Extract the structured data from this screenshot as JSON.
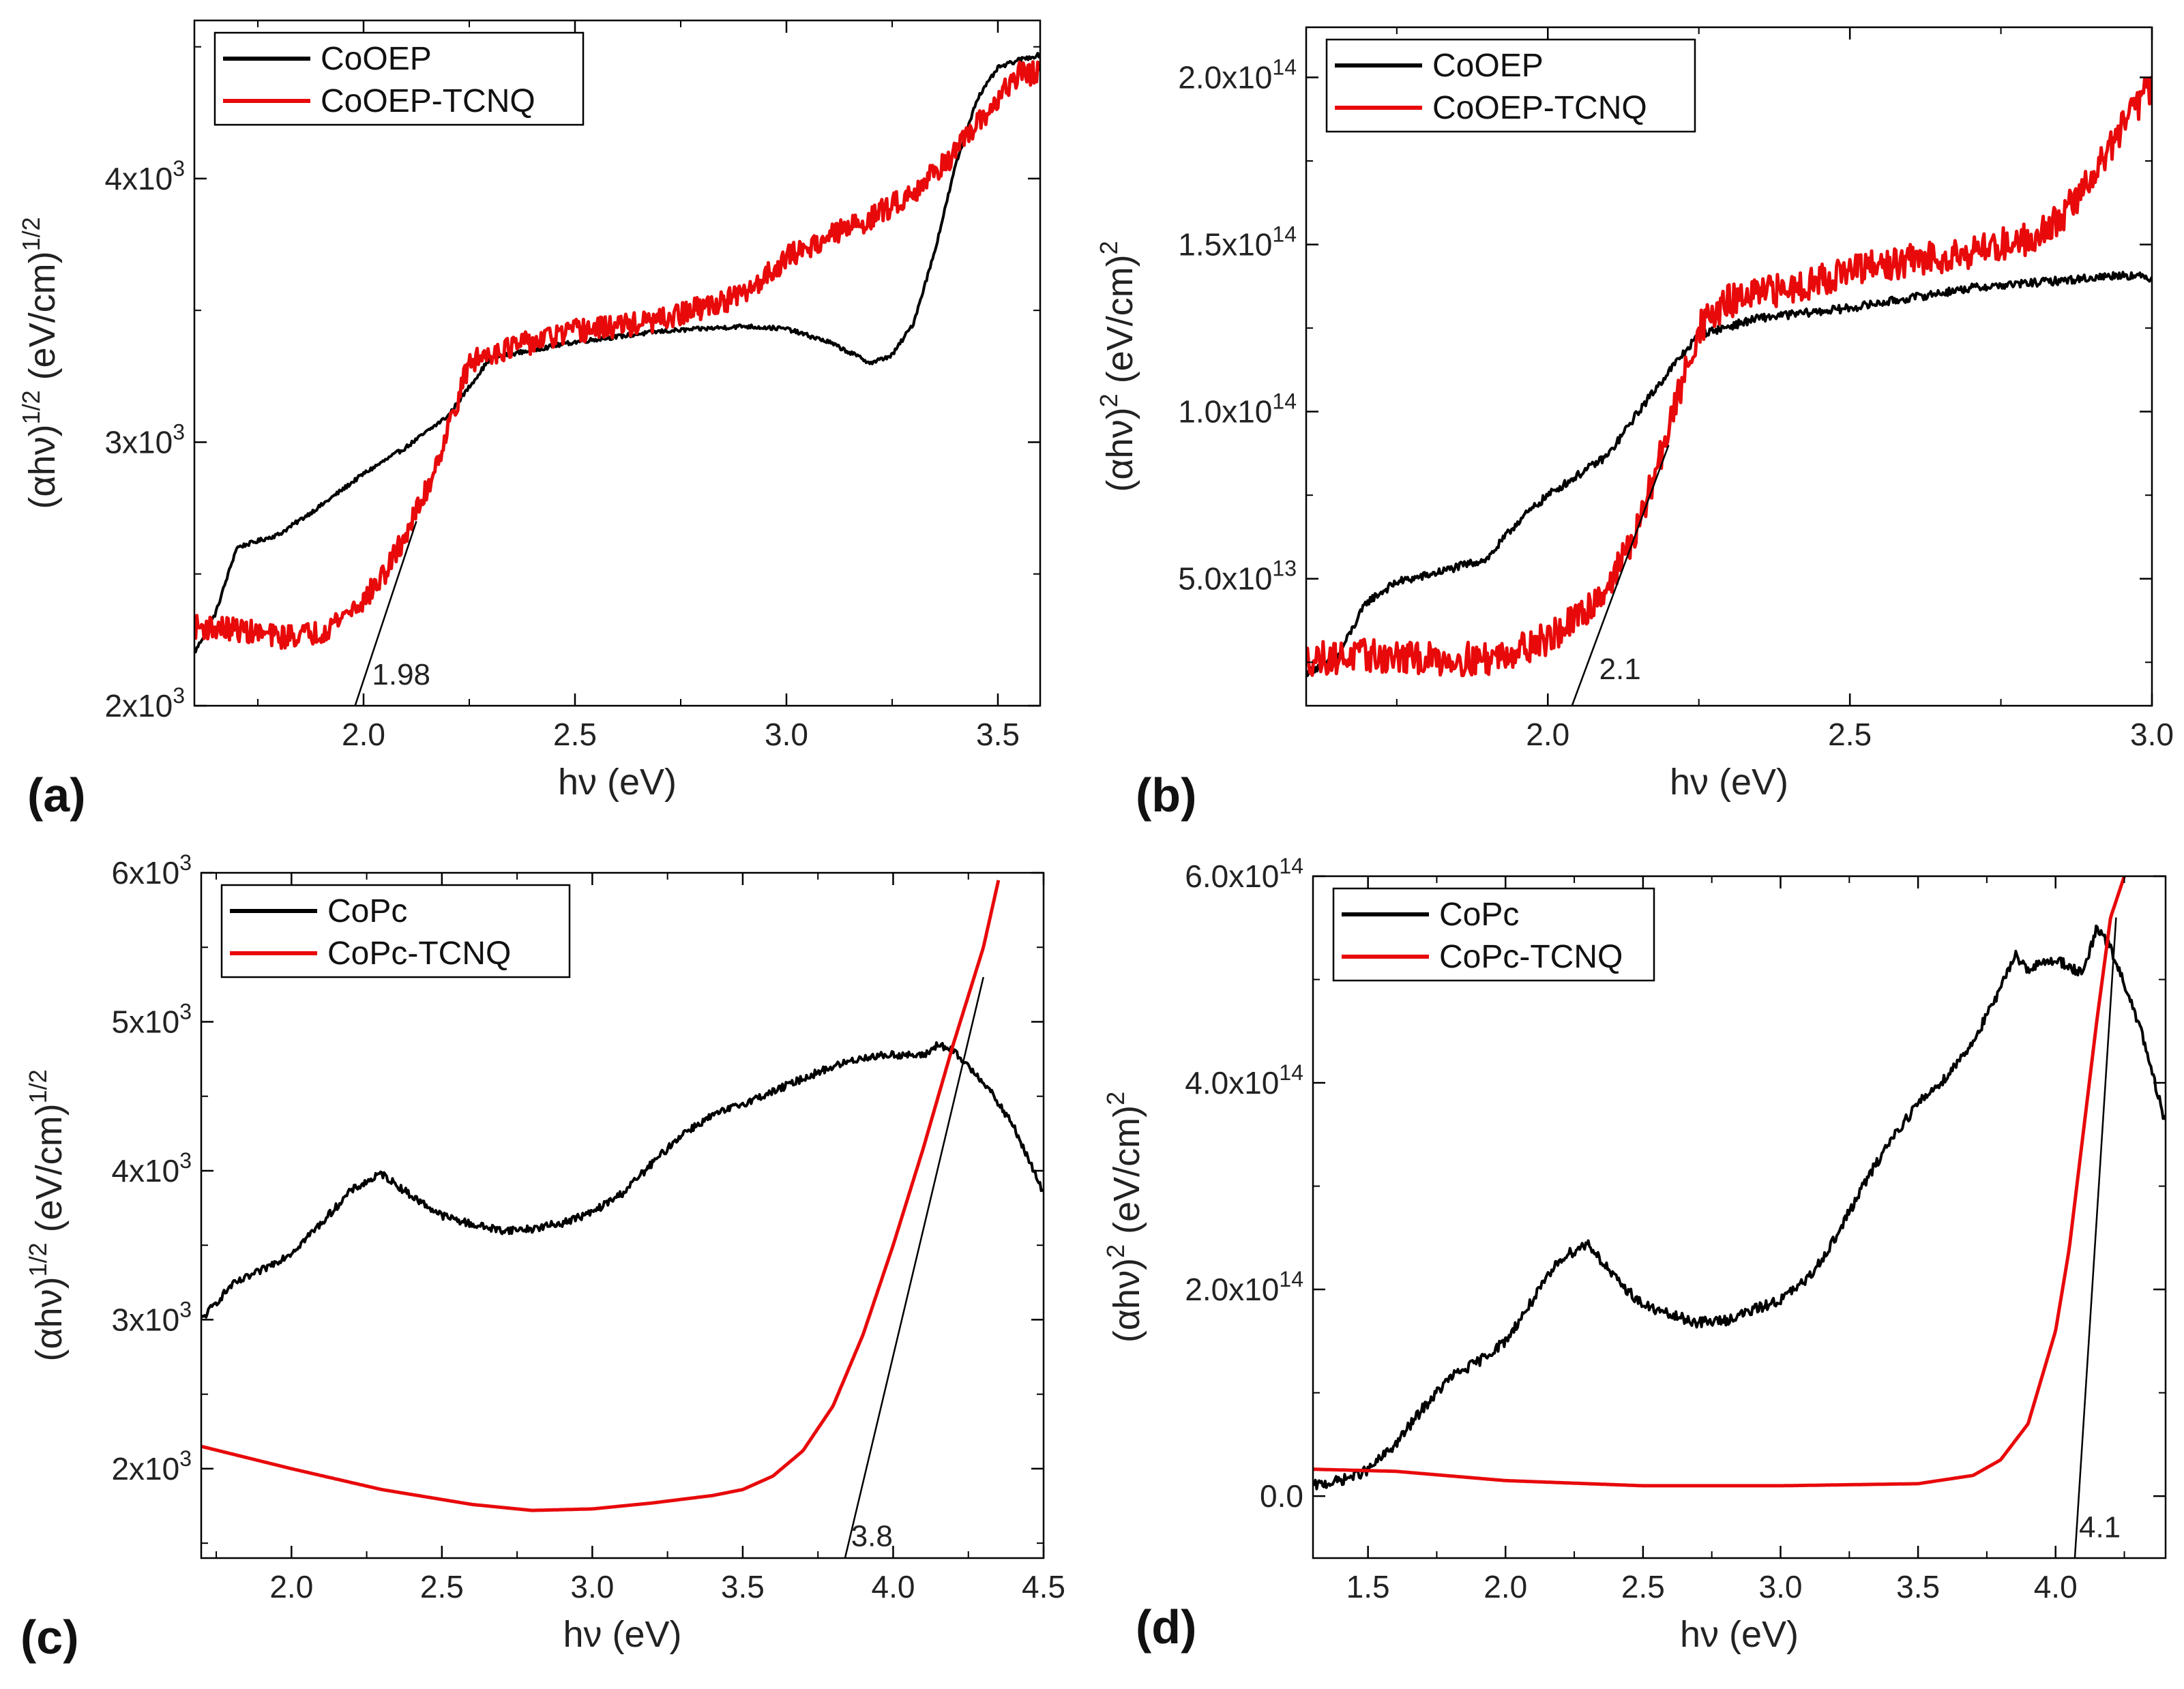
{
  "chart_data": [
    {
      "id": "a",
      "panel_label": "(a)",
      "type": "line",
      "xlabel": "hν (eV)",
      "ylabel": "(αhν)^1/2 (eV/cm)^1/2",
      "ylabel_main": "(αhν)",
      "ylabel_sup1": "1/2",
      "ylabel_mid": " (eV/cm)",
      "ylabel_sup2": "1/2",
      "xlim": [
        1.6,
        3.6
      ],
      "ylim": [
        2000,
        4600
      ],
      "xticks": [
        {
          "v": 2.0,
          "t": "2.0"
        },
        {
          "v": 2.5,
          "t": "2.5"
        },
        {
          "v": 3.0,
          "t": "3.0"
        },
        {
          "v": 3.5,
          "t": "3.5"
        }
      ],
      "yticks": [
        {
          "v": 2000,
          "b": "2x10",
          "e": "3"
        },
        {
          "v": 3000,
          "b": "3x10",
          "e": "3"
        },
        {
          "v": 4000,
          "b": "4x10",
          "e": "3"
        }
      ],
      "xminor": [
        1.75,
        2.25,
        2.75,
        3.25
      ],
      "yminor": [
        2500,
        3500,
        4500
      ],
      "legend": [
        "CoOEP",
        "CoOEP-TCNQ"
      ],
      "series": [
        {
          "name": "CoOEP",
          "color": "#000000",
          "noise": 8,
          "x": [
            1.6,
            1.65,
            1.7,
            1.8,
            1.9,
            2.0,
            2.1,
            2.2,
            2.3,
            2.5,
            2.7,
            2.9,
            3.0,
            3.1,
            3.2,
            3.25,
            3.3,
            3.35,
            3.4,
            3.45,
            3.5,
            3.55,
            3.6
          ],
          "y": [
            2200,
            2350,
            2600,
            2650,
            2760,
            2880,
            2980,
            3100,
            3320,
            3380,
            3420,
            3440,
            3430,
            3380,
            3300,
            3330,
            3450,
            3720,
            4050,
            4300,
            4420,
            4450,
            4470
          ]
        },
        {
          "name": "CoOEP-TCNQ",
          "color": "#e8090a",
          "noise": 45,
          "x": [
            1.6,
            1.7,
            1.8,
            1.9,
            2.0,
            2.05,
            2.1,
            2.15,
            2.2,
            2.25,
            2.3,
            2.5,
            2.7,
            2.9,
            3.0,
            3.1,
            3.2,
            3.3,
            3.4,
            3.5,
            3.55,
            3.6
          ],
          "y": [
            2300,
            2290,
            2260,
            2280,
            2400,
            2500,
            2650,
            2820,
            3050,
            3300,
            3340,
            3420,
            3460,
            3560,
            3700,
            3780,
            3850,
            3950,
            4100,
            4300,
            4400,
            4400
          ]
        }
      ],
      "fit_line": {
        "x": [
          1.98,
          2.125
        ],
        "y": [
          2000,
          2700
        ]
      },
      "annotation": {
        "text": "1.98",
        "x": 2.02,
        "y": 2080
      }
    },
    {
      "id": "b",
      "panel_label": "(b)",
      "type": "line",
      "xlabel": "hν (eV)",
      "ylabel": "(αhν)^2 (eV/cm)^2",
      "ylabel_main": "(αhν)",
      "ylabel_sup1": "2",
      "ylabel_mid": " (eV/cm)",
      "ylabel_sup2": "2",
      "xlim": [
        1.6,
        3.0
      ],
      "ylim": [
        12000000000000.0,
        215000000000000.0
      ],
      "xticks": [
        {
          "v": 2.0,
          "t": "2.0"
        },
        {
          "v": 2.5,
          "t": "2.5"
        },
        {
          "v": 3.0,
          "t": "3.0"
        }
      ],
      "yticks": [
        {
          "v": 50000000000000.0,
          "b": "5.0x10",
          "e": "13"
        },
        {
          "v": 100000000000000.0,
          "b": "1.0x10",
          "e": "14"
        },
        {
          "v": 150000000000000.0,
          "b": "1.5x10",
          "e": "14"
        },
        {
          "v": 200000000000000.0,
          "b": "2.0x10",
          "e": "14"
        }
      ],
      "xminor": [
        1.75,
        2.25,
        2.75
      ],
      "yminor": [
        25000000000000.0,
        75000000000000.0,
        125000000000000.0,
        175000000000000.0
      ],
      "legend": [
        "CoOEP",
        "CoOEP-TCNQ"
      ],
      "series": [
        {
          "name": "CoOEP",
          "color": "#000000",
          "noise": 1200000000000.0,
          "x": [
            1.6,
            1.65,
            1.7,
            1.75,
            1.8,
            1.9,
            1.95,
            2.0,
            2.1,
            2.15,
            2.2,
            2.25,
            2.35,
            2.5,
            2.7,
            2.9,
            2.95,
            3.0
          ],
          "y": [
            22000000000000.0,
            26000000000000.0,
            43000000000000.0,
            49000000000000.0,
            51000000000000.0,
            56000000000000.0,
            67000000000000.0,
            75000000000000.0,
            87000000000000.0,
            100000000000000.0,
            112000000000000.0,
            123000000000000.0,
            128000000000000.0,
            131000000000000.0,
            137000000000000.0,
            140000000000000.0,
            141000000000000.0,
            140000000000000.0
          ]
        },
        {
          "name": "CoOEP-TCNQ",
          "color": "#e8090a",
          "noise": 5000000000000.0,
          "x": [
            1.6,
            1.7,
            1.8,
            1.9,
            2.0,
            2.05,
            2.1,
            2.15,
            2.2,
            2.25,
            2.3,
            2.4,
            2.5,
            2.6,
            2.7,
            2.8,
            2.85,
            2.9,
            2.95,
            3.0
          ],
          "y": [
            26000000000000.0,
            27000000000000.0,
            26000000000000.0,
            26000000000000.0,
            32000000000000.0,
            38000000000000.0,
            48000000000000.0,
            65000000000000.0,
            95000000000000.0,
            125000000000000.0,
            133000000000000.0,
            137000000000000.0,
            142000000000000.0,
            145000000000000.0,
            148000000000000.0,
            152000000000000.0,
            158000000000000.0,
            170000000000000.0,
            185000000000000.0,
            198000000000000.0
          ]
        }
      ],
      "fit_line": {
        "x": [
          2.04,
          2.2
        ],
        "y": [
          12000000000000.0,
          90000000000000.0
        ]
      },
      "annotation": {
        "text": "2.1",
        "x": 2.085,
        "y": 20000000000000.0
      }
    },
    {
      "id": "c",
      "panel_label": "(c)",
      "type": "line",
      "xlabel": "hν (eV)",
      "ylabel": "(αhν)^1/2 (eV/cm)^1/2",
      "ylabel_main": "(αhν)",
      "ylabel_sup1": "1/2",
      "ylabel_mid": " (eV/cm)",
      "ylabel_sup2": "1/2",
      "xlim": [
        1.7,
        4.5
      ],
      "ylim": [
        1400,
        6000
      ],
      "xticks": [
        {
          "v": 2.0,
          "t": "2.0"
        },
        {
          "v": 2.5,
          "t": "2.5"
        },
        {
          "v": 3.0,
          "t": "3.0"
        },
        {
          "v": 3.5,
          "t": "3.5"
        },
        {
          "v": 4.0,
          "t": "4.0"
        },
        {
          "v": 4.5,
          "t": "4.5"
        }
      ],
      "yticks": [
        {
          "v": 2000,
          "b": "2x10",
          "e": "3"
        },
        {
          "v": 3000,
          "b": "3x10",
          "e": "3"
        },
        {
          "v": 4000,
          "b": "4x10",
          "e": "3"
        },
        {
          "v": 5000,
          "b": "5x10",
          "e": "3"
        },
        {
          "v": 6000,
          "b": "6x10",
          "e": "3"
        }
      ],
      "xminor": [
        1.75,
        2.25,
        2.75,
        3.25,
        3.75,
        4.25
      ],
      "yminor": [
        1500,
        2500,
        3500,
        4500,
        5500
      ],
      "legend": [
        "CoPc",
        "CoPc-TCNQ"
      ],
      "series": [
        {
          "name": "CoPc",
          "color": "#000000",
          "noise": 25,
          "x": [
            1.7,
            1.8,
            1.9,
            2.0,
            2.1,
            2.2,
            2.3,
            2.4,
            2.5,
            2.6,
            2.7,
            2.8,
            2.9,
            3.0,
            3.1,
            3.2,
            3.3,
            3.4,
            3.5,
            3.6,
            3.7,
            3.8,
            3.9,
            4.0,
            4.1,
            4.15,
            4.2,
            4.3,
            4.4,
            4.5
          ],
          "y": [
            3000,
            3230,
            3330,
            3450,
            3650,
            3870,
            3980,
            3830,
            3700,
            3640,
            3600,
            3610,
            3650,
            3720,
            3850,
            4050,
            4250,
            4370,
            4450,
            4530,
            4620,
            4700,
            4760,
            4780,
            4770,
            4850,
            4800,
            4600,
            4300,
            3850
          ]
        },
        {
          "name": "CoPc-TCNQ",
          "color": "#e8090a",
          "noise": 0,
          "x": [
            1.7,
            2.0,
            2.3,
            2.6,
            2.8,
            3.0,
            3.2,
            3.4,
            3.5,
            3.6,
            3.7,
            3.8,
            3.9,
            4.0,
            4.1,
            4.2,
            4.3,
            4.35
          ],
          "y": [
            2150,
            2000,
            1860,
            1760,
            1720,
            1730,
            1770,
            1820,
            1860,
            1950,
            2120,
            2420,
            2900,
            3500,
            4150,
            4850,
            5500,
            5950
          ]
        }
      ],
      "fit_line": {
        "x": [
          3.84,
          4.3
        ],
        "y": [
          1400,
          5300
        ]
      },
      "annotation": {
        "text": "3.8",
        "x": 3.86,
        "y": 1480
      }
    },
    {
      "id": "d",
      "panel_label": "(d)",
      "type": "line",
      "xlabel": "hν (eV)",
      "ylabel": "(αhν)^2 (eV/cm)^2",
      "ylabel_main": "(αhν)",
      "ylabel_sup1": "2",
      "ylabel_mid": " (eV/cm)",
      "ylabel_sup2": "2",
      "xlim": [
        1.3,
        4.4
      ],
      "ylim": [
        -60000000000000.0,
        600000000000000.0
      ],
      "xticks": [
        {
          "v": 1.5,
          "t": "1.5"
        },
        {
          "v": 2.0,
          "t": "2.0"
        },
        {
          "v": 2.5,
          "t": "2.5"
        },
        {
          "v": 3.0,
          "t": "3.0"
        },
        {
          "v": 3.5,
          "t": "3.5"
        },
        {
          "v": 4.0,
          "t": "4.0"
        }
      ],
      "yticks": [
        {
          "v": 0,
          "b": "0.0",
          "e": ""
        },
        {
          "v": 200000000000000.0,
          "b": "2.0x10",
          "e": "14"
        },
        {
          "v": 400000000000000.0,
          "b": "4.0x10",
          "e": "14"
        },
        {
          "v": 600000000000000.0,
          "b": "6.0x10",
          "e": "14"
        }
      ],
      "xminor": [
        1.75,
        2.25,
        2.75,
        3.25,
        3.75,
        4.25
      ],
      "yminor": [
        100000000000000.0,
        300000000000000.0,
        500000000000000.0
      ],
      "legend": [
        "CoPc",
        "CoPc-TCNQ"
      ],
      "series": [
        {
          "name": "CoPc",
          "color": "#000000",
          "noise": 5000000000000.0,
          "x": [
            1.3,
            1.4,
            1.5,
            1.6,
            1.7,
            1.8,
            1.9,
            2.0,
            2.1,
            2.2,
            2.3,
            2.4,
            2.5,
            2.6,
            2.7,
            2.8,
            2.9,
            3.0,
            3.1,
            3.2,
            3.3,
            3.4,
            3.5,
            3.6,
            3.7,
            3.8,
            3.85,
            3.9,
            4.0,
            4.1,
            4.15,
            4.2,
            4.3,
            4.4
          ],
          "y": [
            10000000000000.0,
            15000000000000.0,
            25000000000000.0,
            50000000000000.0,
            85000000000000.0,
            115000000000000.0,
            130000000000000.0,
            150000000000000.0,
            190000000000000.0,
            230000000000000.0,
            245000000000000.0,
            210000000000000.0,
            185000000000000.0,
            175000000000000.0,
            168000000000000.0,
            170000000000000.0,
            180000000000000.0,
            190000000000000.0,
            210000000000000.0,
            250000000000000.0,
            300000000000000.0,
            345000000000000.0,
            380000000000000.0,
            405000000000000.0,
            440000000000000.0,
            490000000000000.0,
            525000000000000.0,
            510000000000000.0,
            520000000000000.0,
            505000000000000.0,
            550000000000000.0,
            530000000000000.0,
            460000000000000.0,
            360000000000000.0
          ]
        },
        {
          "name": "CoPc-TCNQ",
          "color": "#e8090a",
          "noise": 0,
          "x": [
            1.3,
            1.6,
            2.0,
            2.5,
            3.0,
            3.5,
            3.7,
            3.8,
            3.9,
            4.0,
            4.05,
            4.1,
            4.15,
            4.2,
            4.25
          ],
          "y": [
            26000000000000.0,
            24000000000000.0,
            15000000000000.0,
            10000000000000.0,
            10000000000000.0,
            12000000000000.0,
            20000000000000.0,
            35000000000000.0,
            70000000000000.0,
            160000000000000.0,
            240000000000000.0,
            350000000000000.0,
            460000000000000.0,
            560000000000000.0,
            600000000000000.0
          ]
        }
      ],
      "fit_line": {
        "x": [
          4.07,
          4.22
        ],
        "y": [
          -60000000000000.0,
          560000000000000.0
        ]
      },
      "annotation": {
        "text": "4.1",
        "x": 4.085,
        "y": -40000000000000.0
      }
    }
  ]
}
